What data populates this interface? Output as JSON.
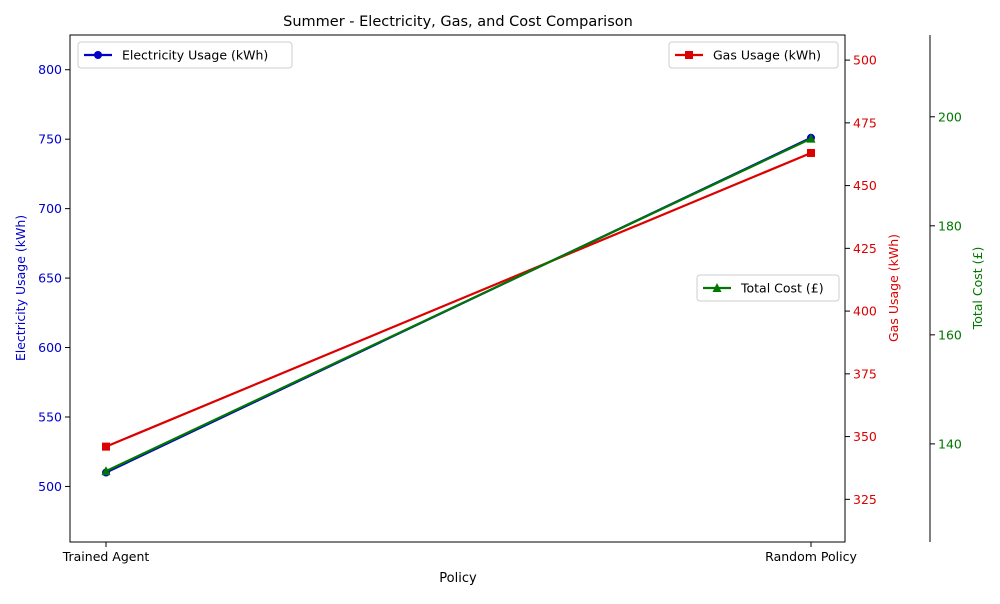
{
  "chart_data": {
    "type": "line",
    "title": "Summer - Electricity, Gas, and Cost Comparison",
    "xlabel": "Policy",
    "categories": [
      "Trained Agent",
      "Random Policy"
    ],
    "series": [
      {
        "name": "Electricity Usage (kWh)",
        "axis": "left",
        "ylabel": "Electricity Usage (kWh)",
        "values": [
          510,
          751
        ],
        "color": "#0000cc",
        "marker": "circle",
        "ylim": [
          460,
          825
        ],
        "ticks": [
          500,
          550,
          600,
          650,
          700,
          750,
          800
        ]
      },
      {
        "name": "Gas Usage (kWh)",
        "axis": "right",
        "ylabel": "Gas Usage (kWh)",
        "values": [
          346,
          463
        ],
        "color": "#dd0000",
        "marker": "square",
        "ylim": [
          308,
          510
        ],
        "ticks": [
          325,
          350,
          375,
          400,
          425,
          450,
          475,
          500
        ]
      },
      {
        "name": "Total Cost (£)",
        "axis": "right-outer",
        "ylabel": "Total Cost (£)",
        "values": [
          135,
          196
        ],
        "color": "#007700",
        "marker": "triangle",
        "ylim": [
          122,
          215
        ],
        "ticks": [
          140,
          160,
          180,
          200
        ]
      }
    ],
    "legend_positions": [
      "top-left",
      "top-right",
      "center-right"
    ],
    "grid": false
  }
}
